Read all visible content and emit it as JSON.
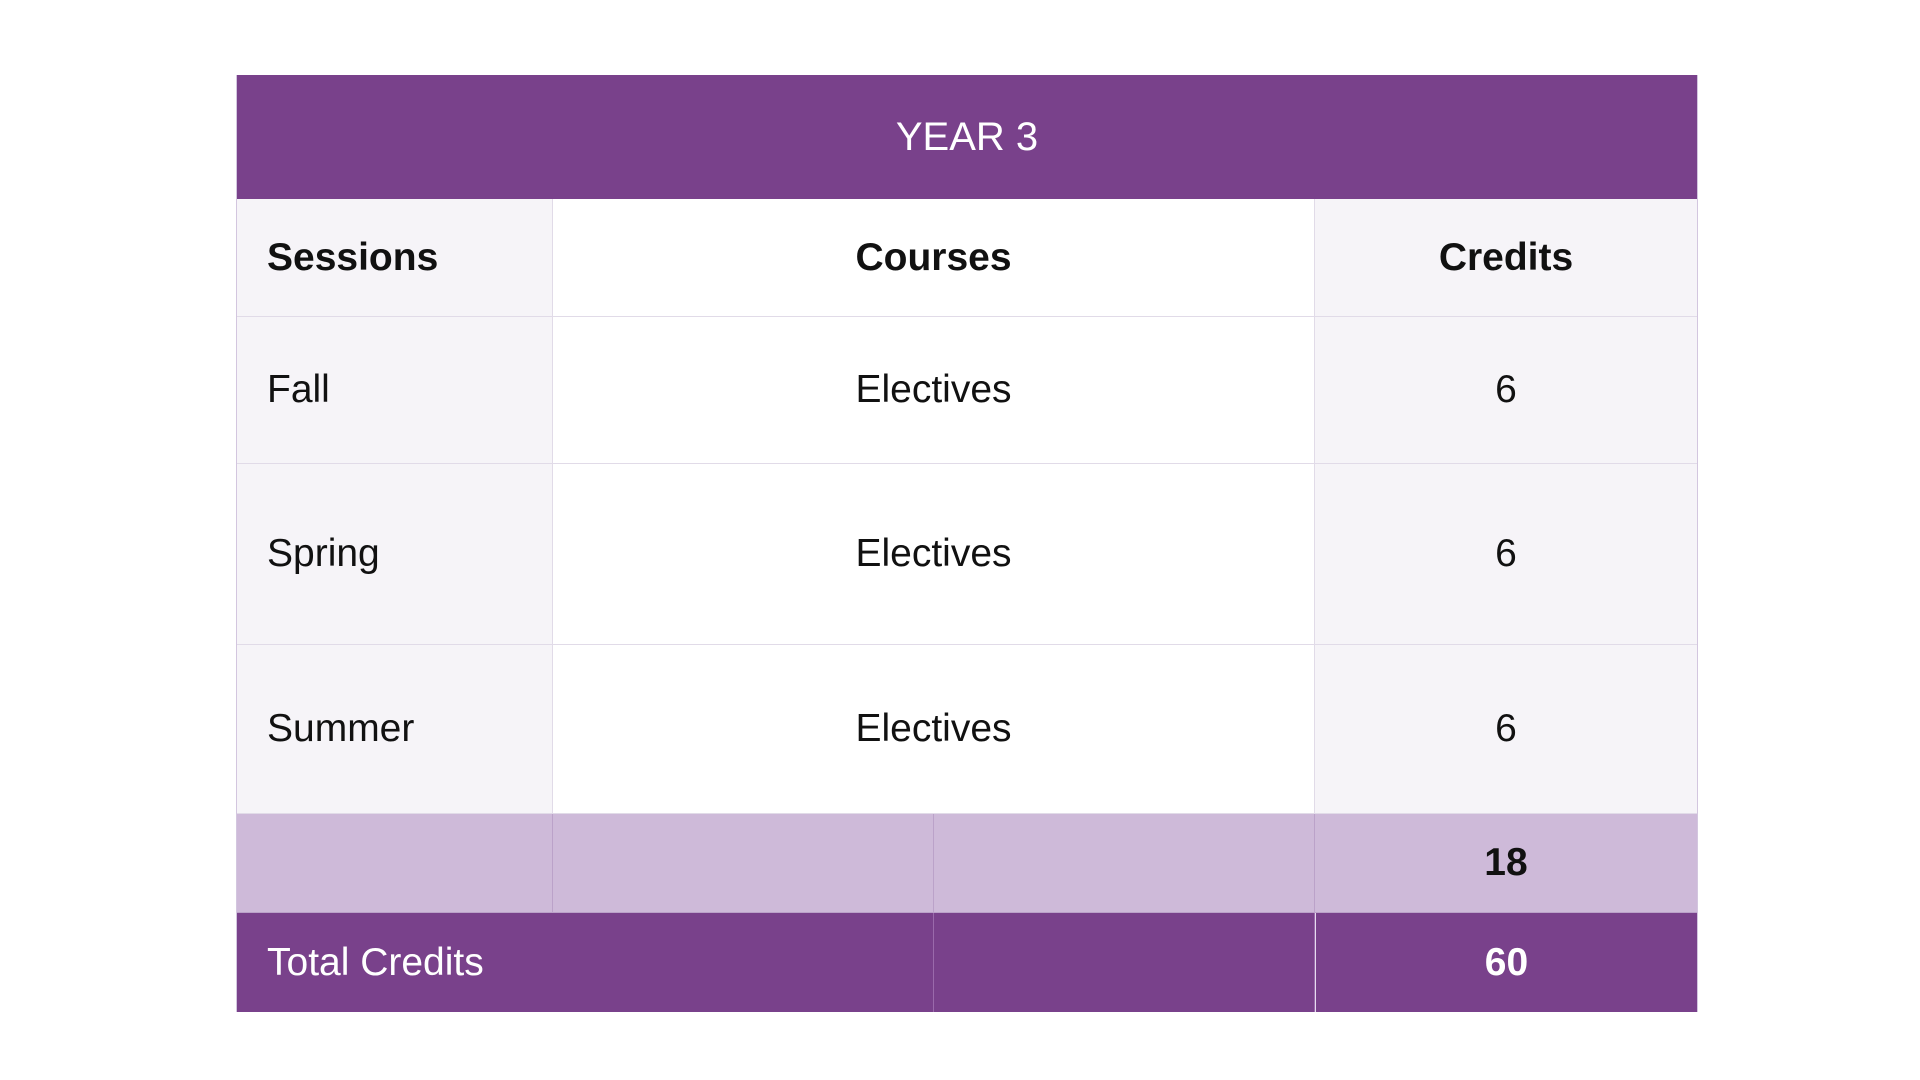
{
  "table": {
    "title": "YEAR 3",
    "headers": {
      "sessions": "Sessions",
      "courses": "Courses",
      "credits": "Credits"
    },
    "rows": [
      {
        "session": "Fall",
        "course": "Electives",
        "credits": "6"
      },
      {
        "session": "Spring",
        "course": "Electives",
        "credits": "6"
      },
      {
        "session": "Summer",
        "course": "Electives",
        "credits": "6"
      }
    ],
    "subtotal": "18",
    "total_label": "Total Credits",
    "total_value": "60"
  },
  "colors": {
    "header_purple": "#79418b",
    "subtotal_lilac": "#cebad9",
    "row_tint": "#f6f4f8"
  }
}
